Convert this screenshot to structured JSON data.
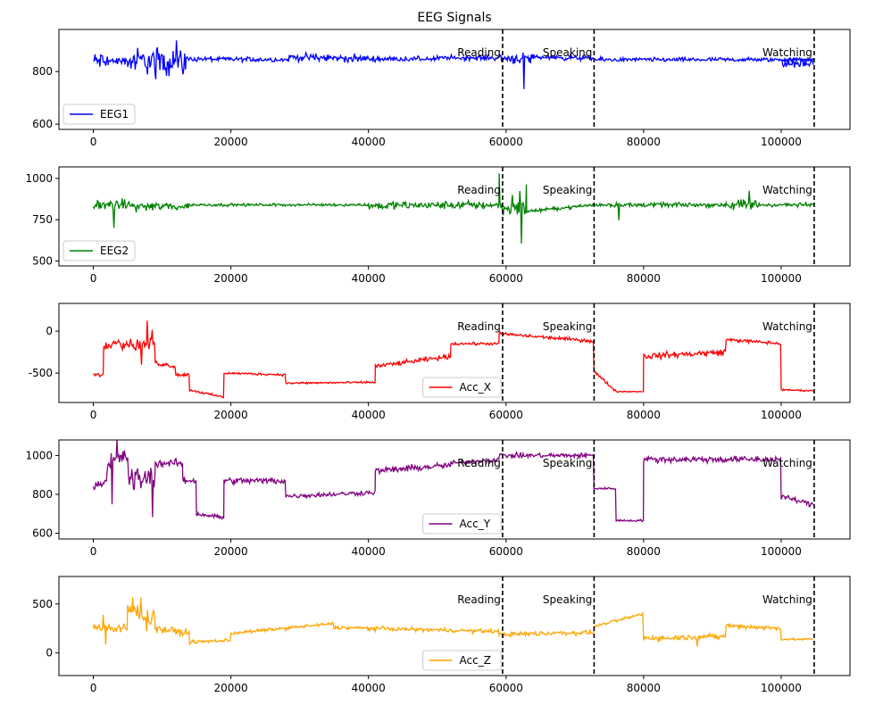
{
  "chart_data": [
    {
      "type": "line",
      "title": "EEG Signals",
      "series": [
        {
          "name": "EEG1",
          "color": "#0000ff"
        }
      ],
      "xlim": [
        -5000,
        110000
      ],
      "ylim": [
        580,
        960
      ],
      "x_ticks": [
        0,
        20000,
        40000,
        60000,
        80000,
        100000
      ],
      "y_ticks": [
        600,
        800
      ],
      "legend": "lower-left",
      "annotations": [
        {
          "x": 59500,
          "label": "Reading"
        },
        {
          "x": 72800,
          "label": "Speaking"
        },
        {
          "x": 104800,
          "label": "Watching"
        }
      ]
    },
    {
      "type": "line",
      "title": "",
      "series": [
        {
          "name": "EEG2",
          "color": "#008000"
        }
      ],
      "xlim": [
        -5000,
        110000
      ],
      "ylim": [
        470,
        1070
      ],
      "x_ticks": [
        0,
        20000,
        40000,
        60000,
        80000,
        100000
      ],
      "y_ticks": [
        500,
        750,
        1000
      ],
      "legend": "lower-left",
      "annotations": [
        {
          "x": 59500,
          "label": "Reading"
        },
        {
          "x": 72800,
          "label": "Speaking"
        },
        {
          "x": 104800,
          "label": "Watching"
        }
      ]
    },
    {
      "type": "line",
      "title": "",
      "series": [
        {
          "name": "Acc_X",
          "color": "#ff0000"
        }
      ],
      "xlim": [
        -5000,
        110000
      ],
      "ylim": [
        -850,
        330
      ],
      "x_ticks": [
        0,
        20000,
        40000,
        60000,
        80000,
        100000
      ],
      "y_ticks": [
        -500,
        0
      ],
      "legend": "lower-center",
      "annotations": [
        {
          "x": 59500,
          "label": "Reading"
        },
        {
          "x": 72800,
          "label": "Speaking"
        },
        {
          "x": 104800,
          "label": "Watching"
        }
      ]
    },
    {
      "type": "line",
      "title": "",
      "series": [
        {
          "name": "Acc_Y",
          "color": "#800080"
        }
      ],
      "xlim": [
        -5000,
        110000
      ],
      "ylim": [
        570,
        1080
      ],
      "x_ticks": [
        0,
        20000,
        40000,
        60000,
        80000,
        100000
      ],
      "y_ticks": [
        600,
        800,
        1000
      ],
      "legend": "lower-center",
      "annotations": [
        {
          "x": 59500,
          "label": "Reading"
        },
        {
          "x": 72800,
          "label": "Speaking"
        },
        {
          "x": 104800,
          "label": "Watching"
        }
      ]
    },
    {
      "type": "line",
      "title": "",
      "series": [
        {
          "name": "Acc_Z",
          "color": "#ffa500"
        }
      ],
      "xlim": [
        -5000,
        110000
      ],
      "ylim": [
        -230,
        780
      ],
      "x_ticks": [
        0,
        20000,
        40000,
        60000,
        80000,
        100000
      ],
      "y_ticks": [
        0,
        500
      ],
      "legend": "lower-center",
      "annotations": [
        {
          "x": 59500,
          "label": "Reading"
        },
        {
          "x": 72800,
          "label": "Speaking"
        },
        {
          "x": 104800,
          "label": "Watching"
        }
      ]
    }
  ]
}
